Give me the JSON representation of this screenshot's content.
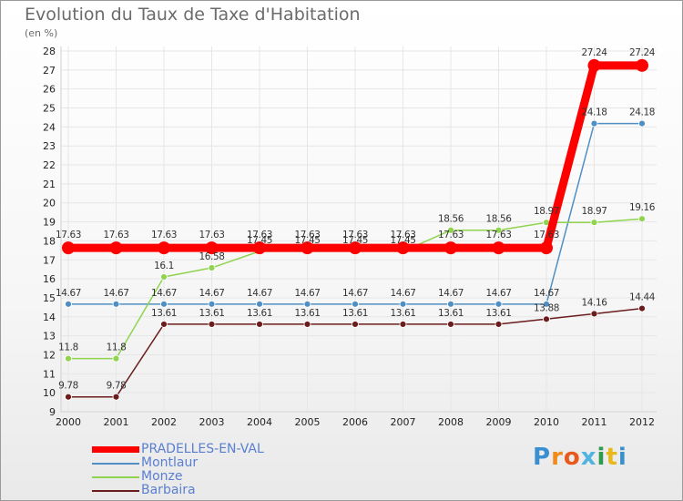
{
  "title": "Evolution du Taux de Taxe d'Habitation",
  "subtitle": "(en %)",
  "logo": "Proxiti",
  "colors": {
    "grid": "#e6e6e6",
    "axis": "#d0d0d0",
    "tick_text": "#222222",
    "value_text": "#333333"
  },
  "chart_data": {
    "type": "line",
    "title": "Evolution du Taux de Taxe d'Habitation",
    "ylabel": "(en %)",
    "xlabel": "",
    "categories": [
      "2000",
      "2001",
      "2002",
      "2003",
      "2004",
      "2005",
      "2006",
      "2007",
      "2008",
      "2009",
      "2010",
      "2011",
      "2012"
    ],
    "ylim": [
      9,
      28
    ],
    "yticks": [
      9,
      10,
      11,
      12,
      13,
      14,
      15,
      16,
      17,
      18,
      19,
      20,
      21,
      22,
      23,
      24,
      25,
      26,
      27,
      28
    ],
    "grid": true,
    "legend": "bottom-left",
    "series": [
      {
        "name": "PRADELLES-EN-VAL",
        "color": "#ff0000",
        "bold": true,
        "values": [
          17.63,
          17.63,
          17.63,
          17.63,
          17.63,
          17.63,
          17.63,
          17.63,
          17.63,
          17.63,
          17.63,
          27.24,
          27.24
        ]
      },
      {
        "name": "Montlaur",
        "color": "#4f8fc4",
        "bold": false,
        "values": [
          14.67,
          14.67,
          14.67,
          14.67,
          14.67,
          14.67,
          14.67,
          14.67,
          14.67,
          14.67,
          14.67,
          24.18,
          24.18
        ]
      },
      {
        "name": "Monze",
        "color": "#8fd34f",
        "bold": false,
        "values": [
          11.8,
          11.8,
          16.1,
          16.58,
          17.45,
          17.45,
          17.45,
          17.45,
          18.56,
          18.56,
          18.97,
          18.97,
          19.16
        ]
      },
      {
        "name": "Barbaira",
        "color": "#6b1c1c",
        "bold": false,
        "values": [
          9.78,
          9.78,
          13.61,
          13.61,
          13.61,
          13.61,
          13.61,
          13.61,
          13.61,
          13.61,
          13.88,
          14.16,
          14.44
        ]
      }
    ]
  }
}
